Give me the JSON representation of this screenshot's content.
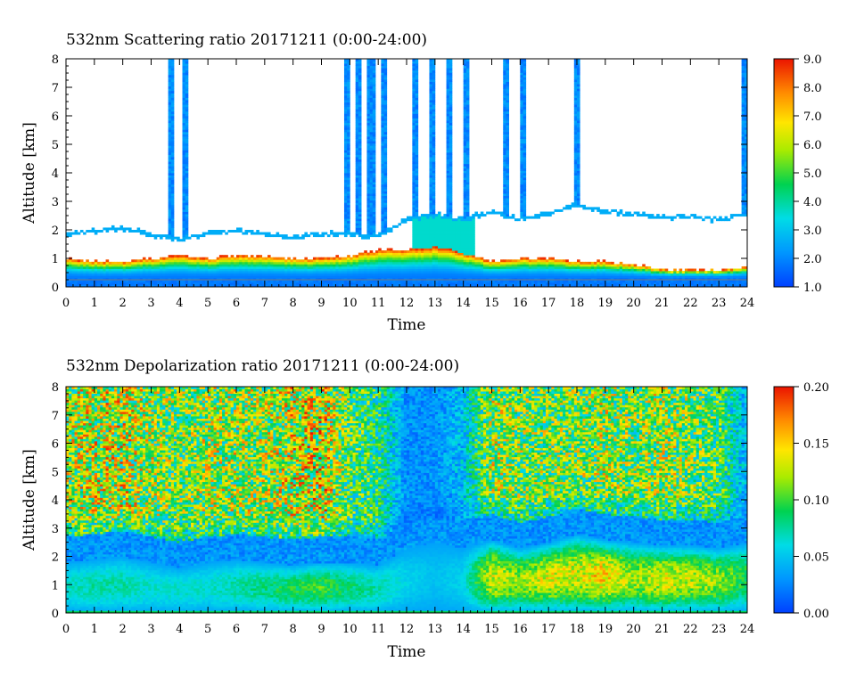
{
  "chart_data": [
    {
      "type": "heatmap",
      "title": "532nm Scattering ratio  20171211 (0:00-24:00)",
      "xlabel": "Time",
      "ylabel": "Altitude [km]",
      "xlim": [
        0,
        24
      ],
      "ylim": [
        0,
        8
      ],
      "x_ticks": [
        "0",
        "1",
        "2",
        "3",
        "4",
        "5",
        "6",
        "7",
        "8",
        "9",
        "10",
        "11",
        "12",
        "13",
        "14",
        "15",
        "16",
        "17",
        "18",
        "19",
        "20",
        "21",
        "22",
        "23",
        "24"
      ],
      "y_ticks": [
        "0",
        "1",
        "2",
        "3",
        "4",
        "5",
        "6",
        "7",
        "8"
      ],
      "colorbar": {
        "range": [
          1.0,
          9.0
        ],
        "ticks": [
          "1.0",
          "2.0",
          "3.0",
          "4.0",
          "5.0",
          "6.0",
          "7.0",
          "8.0",
          "9.0"
        ]
      },
      "cloud_top_km": [
        1.8,
        1.9,
        2.0,
        1.8,
        1.6,
        1.8,
        1.9,
        1.8,
        1.7,
        1.8,
        1.8,
        1.7,
        2.3,
        2.5,
        2.3,
        2.6,
        2.3,
        2.5,
        2.8,
        2.6,
        2.5,
        2.4,
        2.4,
        2.3,
        2.5
      ],
      "cloud_base_km": [
        1.0,
        0.9,
        0.9,
        1.0,
        1.1,
        1.0,
        1.1,
        1.1,
        1.0,
        1.0,
        1.1,
        1.3,
        1.3,
        1.4,
        1.2,
        0.9,
        1.0,
        1.0,
        0.9,
        0.9,
        0.8,
        0.6,
        0.6,
        0.6,
        0.7
      ],
      "column_events": [
        {
          "time": 3.7,
          "top_km": 8
        },
        {
          "time": 4.2,
          "top_km": 8
        },
        {
          "time": 9.9,
          "top_km": 8
        },
        {
          "time": 10.3,
          "top_km": 8
        },
        {
          "time": 10.75,
          "top_km": 8
        },
        {
          "time": 11.2,
          "top_km": 8
        },
        {
          "time": 12.3,
          "top_km": 8
        },
        {
          "time": 12.9,
          "top_km": 8
        },
        {
          "time": 13.5,
          "top_km": 8
        },
        {
          "time": 14.1,
          "top_km": 8
        },
        {
          "time": 15.5,
          "top_km": 8
        },
        {
          "time": 16.1,
          "top_km": 8
        },
        {
          "time": 18.0,
          "top_km": 8
        },
        {
          "time": 23.9,
          "top_km": 8
        }
      ]
    },
    {
      "type": "heatmap",
      "title": "532nm Depolarization ratio  20171211 (0:00-24:00)",
      "xlabel": "Time",
      "ylabel": "Altitude [km]",
      "xlim": [
        0,
        24
      ],
      "ylim": [
        0,
        8
      ],
      "x_ticks": [
        "0",
        "1",
        "2",
        "3",
        "4",
        "5",
        "6",
        "7",
        "8",
        "9",
        "10",
        "11",
        "12",
        "13",
        "14",
        "15",
        "16",
        "17",
        "18",
        "19",
        "20",
        "21",
        "22",
        "23",
        "24"
      ],
      "y_ticks": [
        "0",
        "1",
        "2",
        "3",
        "4",
        "5",
        "6",
        "7",
        "8"
      ],
      "colorbar": {
        "range": [
          0.0,
          0.2
        ],
        "ticks": [
          "0.00",
          "0.05",
          "0.10",
          "0.15",
          "0.20"
        ]
      },
      "low_layer_peak": [
        0.07,
        0.08,
        0.08,
        0.07,
        0.07,
        0.07,
        0.08,
        0.09,
        0.1,
        0.11,
        0.09,
        0.08,
        0.06,
        0.05,
        0.06,
        0.15,
        0.13,
        0.15,
        0.15,
        0.17,
        0.13,
        0.15,
        0.14,
        0.13,
        0.1
      ],
      "upper_level_mean": [
        0.12,
        0.13,
        0.13,
        0.12,
        0.11,
        0.12,
        0.12,
        0.12,
        0.13,
        0.14,
        0.1,
        0.09,
        0.03,
        0.03,
        0.05,
        0.12,
        0.11,
        0.11,
        0.11,
        0.12,
        0.11,
        0.12,
        0.11,
        0.1,
        0.04
      ]
    }
  ]
}
